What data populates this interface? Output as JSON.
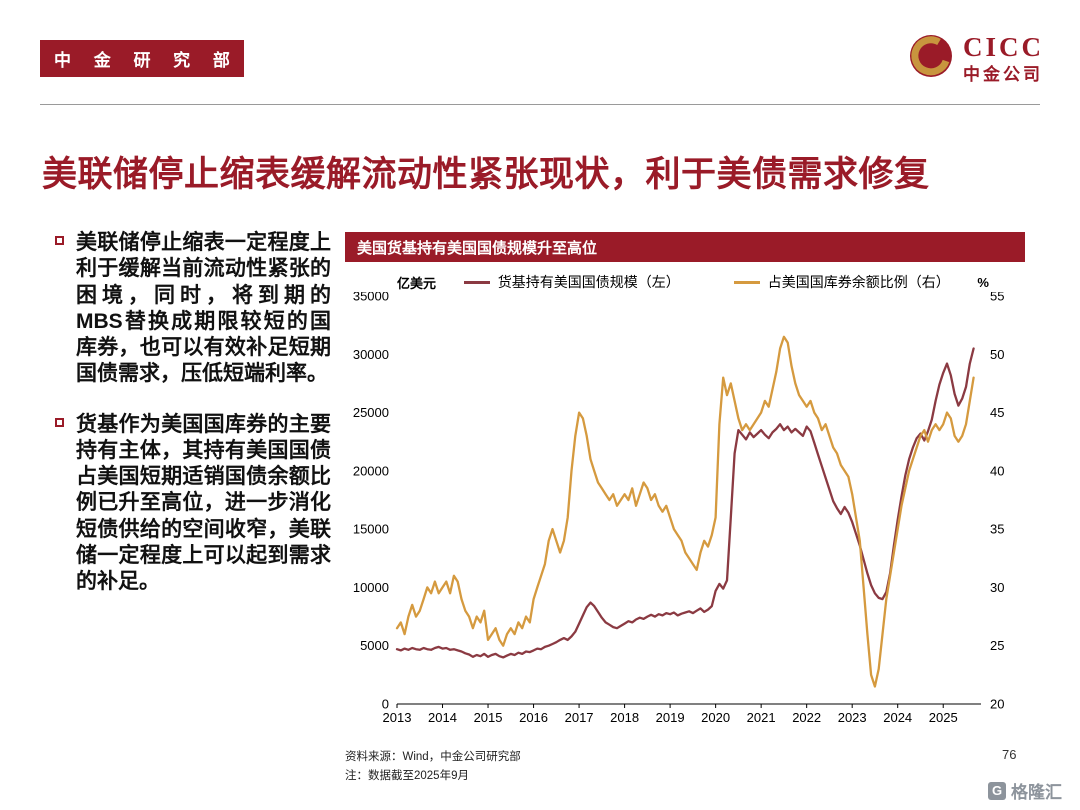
{
  "header": {
    "badge": "中 金 研 究 部",
    "logo_text": "CICC",
    "logo_subtext": "中金公司"
  },
  "title": "美联储停止缩表缓解流动性紧张现状，利于美债需求修复",
  "bullets": [
    "美联储停止缩表一定程度上利于缓解当前流动性紧张的困境，同时，将到期的MBS替换成期限较短的国库券，也可以有效补足短期国债需求，压低短端利率。",
    "货基作为美国国库券的主要持有主体，其持有美国国债占美国短期适销国债余额比例已升至高位，进一步消化短债供给的空间收窄，美联储一定程度上可以起到需求的补足。"
  ],
  "footer": {
    "source": "资料来源：Wind，中金公司研究部",
    "note": "注：数据截至2025年9月",
    "page": "76",
    "watermark": "格隆汇",
    "watermark_icon": "G"
  },
  "colors": {
    "brand_red": "#9A1B28",
    "line_red": "#8B3A42",
    "line_gold": "#D59A3F"
  },
  "chart_data": {
    "type": "line",
    "title": "美国货基持有美国国债规模升至高位",
    "left_axis_label": "亿美元",
    "right_axis_label": "%",
    "grid": false,
    "legend_position": "top",
    "ylim_left": [
      0,
      35000
    ],
    "yticks_left": [
      0,
      5000,
      10000,
      15000,
      20000,
      25000,
      30000,
      35000
    ],
    "ylim_right": [
      20,
      55
    ],
    "yticks_right": [
      20,
      25,
      30,
      35,
      40,
      45,
      50,
      55
    ],
    "x_domain": [
      2013,
      2025.83
    ],
    "x_start_year": 2013,
    "x_frequency": "monthly",
    "x_ticks": [
      2013,
      2014,
      2015,
      2016,
      2017,
      2018,
      2019,
      2020,
      2021,
      2022,
      2023,
      2024,
      2025
    ],
    "series": [
      {
        "name": "货基持有美国国债规模（左）",
        "axis": "left",
        "color": "#8B3A42",
        "values": [
          4700,
          4600,
          4750,
          4650,
          4800,
          4700,
          4650,
          4800,
          4700,
          4650,
          4800,
          4900,
          4750,
          4800,
          4650,
          4700,
          4600,
          4500,
          4350,
          4250,
          4050,
          4200,
          4100,
          4300,
          4050,
          4200,
          4300,
          4100,
          4000,
          4150,
          4300,
          4200,
          4400,
          4300,
          4500,
          4450,
          4600,
          4750,
          4700,
          4900,
          5000,
          5150,
          5300,
          5500,
          5650,
          5500,
          5800,
          6200,
          6900,
          7600,
          8300,
          8700,
          8400,
          7900,
          7400,
          7000,
          6800,
          6600,
          6500,
          6700,
          6900,
          7100,
          7000,
          7250,
          7400,
          7300,
          7500,
          7650,
          7500,
          7700,
          7600,
          7800,
          7700,
          7850,
          7600,
          7750,
          7850,
          7950,
          7800,
          8000,
          8200,
          7900,
          8100,
          8400,
          9700,
          10300,
          9900,
          10600,
          16000,
          21500,
          23500,
          23100,
          22700,
          23300,
          22900,
          23200,
          23500,
          23100,
          22800,
          23300,
          23600,
          24000,
          23500,
          23800,
          23300,
          23600,
          23300,
          23000,
          23800,
          23400,
          22400,
          21400,
          20400,
          19400,
          18400,
          17400,
          16800,
          16300,
          16900,
          16400,
          15600,
          14600,
          13600,
          12400,
          11200,
          10200,
          9500,
          9100,
          9000,
          9600,
          11200,
          13600,
          15800,
          17800,
          19600,
          21000,
          22000,
          22800,
          23200,
          22600,
          23400,
          24400,
          26000,
          27400,
          28400,
          29200,
          28200,
          26600,
          25600,
          26200,
          27200,
          29200,
          30500
        ]
      },
      {
        "name": "占美国国库券余额比例（右）",
        "axis": "right",
        "color": "#D59A3F",
        "values": [
          26.5,
          27,
          26,
          27.5,
          28.5,
          27.5,
          28,
          29,
          30,
          29.5,
          30.5,
          29.5,
          30,
          30.5,
          29.5,
          31,
          30.5,
          29,
          28,
          27.5,
          26.5,
          27.5,
          27,
          28,
          25.5,
          26,
          26.5,
          25.5,
          25,
          26,
          26.5,
          26,
          27,
          26.5,
          27.5,
          27,
          29,
          30,
          31,
          32,
          34,
          35,
          34,
          33,
          34,
          36,
          40,
          43,
          45,
          44.5,
          43,
          41,
          40,
          39,
          38.5,
          38,
          37.5,
          38,
          37,
          37.5,
          38,
          37.5,
          38.5,
          37,
          38,
          39,
          38.5,
          37.5,
          38,
          37,
          36.5,
          37,
          36,
          35,
          34.5,
          34,
          33,
          32.5,
          32,
          31.5,
          33,
          34,
          33.5,
          34.5,
          36,
          44,
          48,
          46.5,
          47.5,
          46,
          44.5,
          43.5,
          44,
          43.5,
          44,
          44.5,
          45,
          46,
          45.5,
          47,
          48.5,
          50.5,
          51.5,
          51,
          49,
          47.5,
          46.5,
          46,
          45.5,
          46,
          45,
          44.5,
          43.5,
          44,
          43,
          42,
          41.5,
          40.5,
          40,
          39.5,
          38,
          36,
          34,
          30,
          26,
          22.5,
          21.5,
          23,
          26,
          29,
          31,
          33,
          35,
          37,
          38.5,
          40,
          41,
          42,
          43,
          43.5,
          42.5,
          43.5,
          44,
          43.5,
          44,
          45,
          44.5,
          43,
          42.5,
          43,
          44,
          46,
          48
        ]
      }
    ]
  }
}
